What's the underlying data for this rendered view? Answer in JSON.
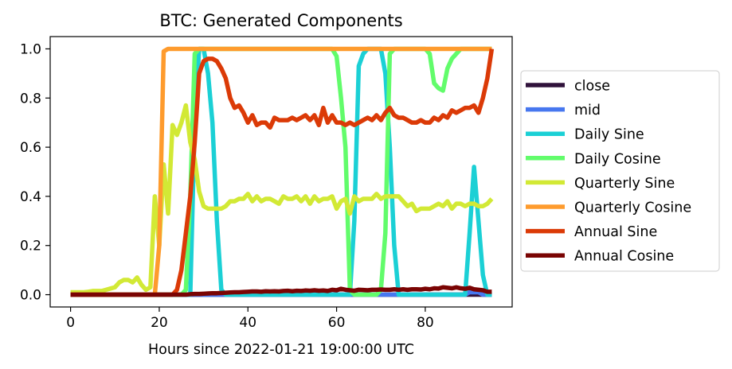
{
  "chart_data": {
    "type": "line",
    "title": "BTC: Generated Components",
    "xlabel": "Hours since 2022-01-21 19:00:00 UTC",
    "ylabel": "",
    "xlim": [
      -4.6,
      99.6
    ],
    "ylim": [
      -0.05,
      1.05
    ],
    "xticks": [
      0,
      20,
      40,
      60,
      80
    ],
    "yticks": [
      0.0,
      0.2,
      0.4,
      0.6,
      0.8,
      1.0
    ],
    "ytick_labels": [
      "0.0",
      "0.2",
      "0.4",
      "0.6",
      "0.8",
      "1.0"
    ],
    "grid": false,
    "legend_position": "center-right, outside plot",
    "series": [
      {
        "name": "close",
        "color": "#30123b",
        "values": [
          0,
          0,
          0,
          0,
          0,
          0,
          0,
          0,
          0,
          0,
          0,
          0,
          0,
          0,
          0,
          0,
          0,
          0,
          0,
          0,
          0,
          0,
          0,
          0,
          0,
          0,
          0,
          0,
          0,
          0,
          0,
          0,
          0,
          0,
          0,
          0,
          0,
          0,
          0,
          0,
          0,
          0,
          0,
          0,
          0,
          0,
          0,
          0,
          0,
          0,
          0,
          0,
          0,
          0,
          0,
          0,
          0,
          0,
          0,
          0,
          0,
          0,
          0,
          0,
          0,
          0,
          0,
          0,
          0,
          0,
          0,
          0,
          0,
          0,
          0,
          0,
          0,
          0,
          0,
          0,
          0,
          0,
          0,
          0,
          0,
          0,
          0,
          0,
          0,
          0,
          0,
          0,
          0,
          0,
          0,
          0
        ]
      },
      {
        "name": "mid",
        "color": "#4777ef",
        "values": [
          0,
          0,
          0,
          0,
          0,
          0,
          0,
          0,
          0,
          0,
          0,
          0,
          0,
          0,
          0,
          0,
          0,
          0,
          0,
          0,
          0,
          0,
          0,
          0,
          0,
          0,
          0,
          0,
          0,
          0,
          0,
          0,
          0,
          0,
          0,
          0,
          0,
          0,
          0,
          0,
          0,
          0,
          0,
          0,
          0,
          0,
          0,
          0,
          0,
          0,
          0,
          0,
          0,
          0,
          0,
          0,
          0,
          0,
          0,
          0,
          0,
          0,
          0,
          0,
          0,
          0,
          0,
          0,
          0,
          0,
          0,
          0,
          0,
          0,
          0,
          0,
          0,
          0,
          0,
          0,
          0,
          0,
          0,
          0,
          0,
          0,
          0,
          0,
          0,
          0,
          0.01,
          0.01,
          0.01,
          0,
          0,
          0
        ]
      },
      {
        "name": "Daily Sine",
        "color": "#1bd0d5",
        "values": [
          0,
          0,
          0,
          0,
          0,
          0,
          0,
          0,
          0,
          0,
          0,
          0,
          0,
          0,
          0,
          0,
          0,
          0,
          0,
          0,
          0,
          0,
          0,
          0,
          0,
          0,
          0,
          0,
          0.7,
          1.0,
          1.0,
          0.9,
          0.7,
          0.3,
          0.02,
          0,
          0,
          0,
          0,
          0,
          0,
          0,
          0,
          0,
          0,
          0,
          0,
          0,
          0,
          0,
          0,
          0,
          0,
          0,
          0,
          0,
          0,
          0,
          0,
          0,
          0,
          0,
          0,
          0,
          0.3,
          0.93,
          0.98,
          1.0,
          1.0,
          1.0,
          1.0,
          0.9,
          0.6,
          0.2,
          0,
          0,
          0,
          0,
          0,
          0,
          0,
          0,
          0,
          0,
          0,
          0,
          0,
          0,
          0,
          0,
          0.25,
          0.52,
          0.3,
          0.08,
          0,
          0
        ]
      },
      {
        "name": "Daily Cosine",
        "color": "#62fc6b",
        "values": [
          0,
          0,
          0,
          0,
          0,
          0,
          0,
          0,
          0,
          0,
          0,
          0,
          0,
          0,
          0,
          0,
          0,
          0,
          0,
          0,
          0,
          0,
          0,
          0,
          0,
          0,
          0.02,
          0.4,
          0.98,
          1.0,
          1.0,
          1.0,
          1.0,
          1.0,
          1.0,
          1.0,
          1.0,
          1.0,
          1.0,
          1.0,
          1.0,
          1.0,
          1.0,
          1.0,
          1.0,
          1.0,
          1.0,
          1.0,
          1.0,
          1.0,
          1.0,
          1.0,
          1.0,
          1.0,
          1.0,
          1.0,
          1.0,
          1.0,
          1.0,
          1.0,
          0.97,
          0.8,
          0.6,
          0.02,
          0,
          0,
          0,
          0,
          0,
          0,
          0.02,
          0.25,
          0.98,
          1.0,
          1.0,
          1.0,
          1.0,
          1.0,
          1.0,
          1.0,
          1.0,
          0.98,
          0.86,
          0.84,
          0.83,
          0.92,
          0.96,
          0.98,
          1.0,
          1.0,
          1.0,
          1.0,
          1.0,
          1.0,
          1.0,
          1.0
        ]
      },
      {
        "name": "Quarterly Sine",
        "color": "#d2e935",
        "values": [
          0.01,
          0.01,
          0.01,
          0.01,
          0.012,
          0.015,
          0.015,
          0.015,
          0.02,
          0.025,
          0.03,
          0.05,
          0.06,
          0.06,
          0.05,
          0.07,
          0.04,
          0.02,
          0.03,
          0.4,
          0.2,
          0.53,
          0.33,
          0.69,
          0.65,
          0.7,
          0.77,
          0.62,
          0.55,
          0.42,
          0.36,
          0.35,
          0.35,
          0.35,
          0.35,
          0.36,
          0.38,
          0.38,
          0.39,
          0.39,
          0.41,
          0.38,
          0.4,
          0.38,
          0.39,
          0.39,
          0.38,
          0.37,
          0.4,
          0.39,
          0.39,
          0.4,
          0.38,
          0.4,
          0.37,
          0.4,
          0.38,
          0.39,
          0.39,
          0.4,
          0.35,
          0.38,
          0.39,
          0.33,
          0.4,
          0.38,
          0.39,
          0.39,
          0.39,
          0.41,
          0.39,
          0.4,
          0.4,
          0.4,
          0.4,
          0.38,
          0.36,
          0.37,
          0.34,
          0.35,
          0.35,
          0.35,
          0.36,
          0.37,
          0.36,
          0.38,
          0.35,
          0.37,
          0.37,
          0.36,
          0.37,
          0.37,
          0.36,
          0.36,
          0.37,
          0.39
        ]
      },
      {
        "name": "Quarterly Cosine",
        "color": "#fe9b2d",
        "values": [
          0,
          0,
          0,
          0,
          0,
          0,
          0,
          0,
          0,
          0,
          0,
          0,
          0,
          0,
          0,
          0,
          0,
          0,
          0,
          0,
          0.2,
          0.99,
          1.0,
          1.0,
          1.0,
          1.0,
          1.0,
          1.0,
          1.0,
          1.0,
          1.0,
          1.0,
          1.0,
          1.0,
          1.0,
          1.0,
          1.0,
          1.0,
          1.0,
          1.0,
          1.0,
          1.0,
          1.0,
          1.0,
          1.0,
          1.0,
          1.0,
          1.0,
          1.0,
          1.0,
          1.0,
          1.0,
          1.0,
          1.0,
          1.0,
          1.0,
          1.0,
          1.0,
          1.0,
          1.0,
          1.0,
          1.0,
          1.0,
          1.0,
          1.0,
          1.0,
          1.0,
          1.0,
          1.0,
          1.0,
          1.0,
          1.0,
          1.0,
          1.0,
          1.0,
          1.0,
          1.0,
          1.0,
          1.0,
          1.0,
          1.0,
          1.0,
          1.0,
          1.0,
          1.0,
          1.0,
          1.0,
          1.0,
          1.0,
          1.0,
          1.0,
          1.0,
          1.0,
          1.0,
          1.0,
          1.0
        ]
      },
      {
        "name": "Annual Sine",
        "color": "#db3a07",
        "values": [
          0,
          0,
          0,
          0,
          0,
          0,
          0,
          0,
          0,
          0,
          0,
          0,
          0,
          0,
          0,
          0,
          0,
          0,
          0,
          0,
          0,
          0,
          0,
          0,
          0.02,
          0.1,
          0.25,
          0.4,
          0.62,
          0.9,
          0.95,
          0.96,
          0.96,
          0.95,
          0.92,
          0.88,
          0.8,
          0.76,
          0.77,
          0.74,
          0.7,
          0.73,
          0.69,
          0.7,
          0.7,
          0.68,
          0.72,
          0.71,
          0.71,
          0.71,
          0.72,
          0.71,
          0.72,
          0.73,
          0.71,
          0.73,
          0.69,
          0.76,
          0.7,
          0.73,
          0.7,
          0.7,
          0.69,
          0.7,
          0.69,
          0.7,
          0.71,
          0.72,
          0.71,
          0.73,
          0.71,
          0.74,
          0.76,
          0.73,
          0.72,
          0.72,
          0.71,
          0.7,
          0.7,
          0.71,
          0.7,
          0.7,
          0.72,
          0.71,
          0.73,
          0.72,
          0.75,
          0.74,
          0.75,
          0.76,
          0.76,
          0.77,
          0.74,
          0.8,
          0.88,
          1.0
        ]
      },
      {
        "name": "Annual Cosine",
        "color": "#7a0403",
        "values": [
          0,
          0,
          0,
          0,
          0,
          0,
          0,
          0,
          0,
          0,
          0,
          0,
          0,
          0,
          0,
          0,
          0,
          0,
          0,
          0,
          0,
          0,
          0,
          0,
          0,
          0,
          0,
          0.002,
          0.003,
          0.003,
          0.004,
          0.005,
          0.006,
          0.006,
          0.007,
          0.008,
          0.009,
          0.01,
          0.01,
          0.011,
          0.012,
          0.013,
          0.013,
          0.012,
          0.014,
          0.013,
          0.014,
          0.013,
          0.015,
          0.016,
          0.014,
          0.016,
          0.015,
          0.017,
          0.016,
          0.018,
          0.016,
          0.017,
          0.015,
          0.02,
          0.018,
          0.024,
          0.02,
          0.018,
          0.016,
          0.02,
          0.019,
          0.018,
          0.02,
          0.02,
          0.021,
          0.02,
          0.02,
          0.022,
          0.02,
          0.022,
          0.02,
          0.022,
          0.022,
          0.021,
          0.024,
          0.022,
          0.026,
          0.025,
          0.03,
          0.028,
          0.026,
          0.03,
          0.026,
          0.024,
          0.028,
          0.022,
          0.02,
          0.018,
          0.012,
          0.012
        ]
      }
    ]
  }
}
